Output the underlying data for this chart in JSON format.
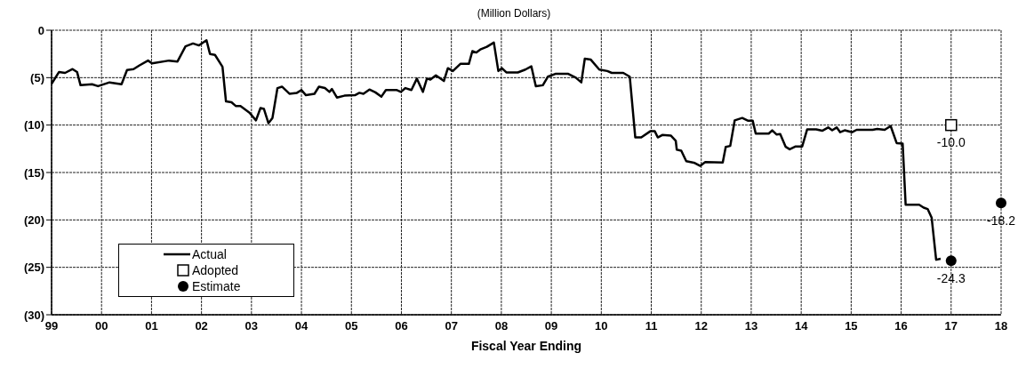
{
  "chart_data": {
    "type": "line",
    "subtitle": "(Million Dollars)",
    "xlabel": "Fiscal Year Ending",
    "xlim": [
      1999,
      2018
    ],
    "xticks": [
      {
        "value": 1999,
        "label": "99"
      },
      {
        "value": 2000,
        "label": "00"
      },
      {
        "value": 2001,
        "label": "01"
      },
      {
        "value": 2002,
        "label": "02"
      },
      {
        "value": 2003,
        "label": "03"
      },
      {
        "value": 2004,
        "label": "04"
      },
      {
        "value": 2005,
        "label": "05"
      },
      {
        "value": 2006,
        "label": "06"
      },
      {
        "value": 2007,
        "label": "07"
      },
      {
        "value": 2008,
        "label": "08"
      },
      {
        "value": 2009,
        "label": "09"
      },
      {
        "value": 2010,
        "label": "10"
      },
      {
        "value": 2011,
        "label": "11"
      },
      {
        "value": 2012,
        "label": "12"
      },
      {
        "value": 2013,
        "label": "13"
      },
      {
        "value": 2014,
        "label": "14"
      },
      {
        "value": 2015,
        "label": "15"
      },
      {
        "value": 2016,
        "label": "16"
      },
      {
        "value": 2017,
        "label": "17"
      },
      {
        "value": 2018,
        "label": "18"
      }
    ],
    "ylim": [
      -30,
      0
    ],
    "yticks": [
      {
        "value": -30,
        "label": "(30)"
      },
      {
        "value": -25,
        "label": "(25)"
      },
      {
        "value": -20,
        "label": "(20)"
      },
      {
        "value": -15,
        "label": "(15)"
      },
      {
        "value": -10,
        "label": "(10)"
      },
      {
        "value": -5,
        "label": "(5)"
      },
      0
    ],
    "grid": true,
    "legend": "bottom left",
    "series": [
      {
        "name": "Actual",
        "marker": "none",
        "color": "#000000",
        "x": [
          1999.0,
          1999.15,
          1999.27,
          1999.42,
          1999.51,
          1999.58,
          1999.81,
          1999.93,
          2000.16,
          2000.4,
          2000.51,
          2000.64,
          2000.76,
          2000.93,
          2001.01,
          2001.35,
          2001.52,
          2001.68,
          2001.83,
          2001.95,
          2002.1,
          2002.17,
          2002.27,
          2002.42,
          2002.49,
          2002.6,
          2002.69,
          2002.78,
          2002.96,
          2003.09,
          2003.18,
          2003.25,
          2003.34,
          2003.42,
          2003.52,
          2003.61,
          2003.76,
          2003.91,
          2004.0,
          2004.09,
          2004.26,
          2004.35,
          2004.47,
          2004.56,
          2004.61,
          2004.71,
          2004.86,
          2005.07,
          2005.16,
          2005.24,
          2005.36,
          2005.48,
          2005.6,
          2005.69,
          2005.9,
          2005.99,
          2006.08,
          2006.2,
          2006.31,
          2006.43,
          2006.51,
          2006.58,
          2006.69,
          2006.85,
          2006.93,
          2007.03,
          2007.18,
          2007.35,
          2007.42,
          2007.5,
          2007.59,
          2007.71,
          2007.85,
          2007.94,
          2008.01,
          2008.1,
          2008.33,
          2008.48,
          2008.6,
          2008.69,
          2008.83,
          2008.93,
          2009.08,
          2009.34,
          2009.49,
          2009.6,
          2009.67,
          2009.79,
          2009.96,
          2010.12,
          2010.21,
          2010.44,
          2010.57,
          2010.68,
          2010.8,
          2010.98,
          2011.07,
          2011.13,
          2011.22,
          2011.39,
          2011.49,
          2011.51,
          2011.6,
          2011.7,
          2011.87,
          2011.98,
          2012.08,
          2012.43,
          2012.49,
          2012.58,
          2012.67,
          2012.82,
          2012.94,
          2013.03,
          2013.09,
          2013.35,
          2013.42,
          2013.51,
          2013.58,
          2013.69,
          2013.77,
          2013.89,
          2014.02,
          2014.12,
          2014.3,
          2014.42,
          2014.54,
          2014.62,
          2014.71,
          2014.78,
          2014.87,
          2015.02,
          2015.11,
          2015.43,
          2015.52,
          2015.67,
          2015.79,
          2015.91,
          2016.03,
          2016.09,
          2016.36,
          2016.45,
          2016.53,
          2016.61,
          2016.7,
          2016.79
        ],
        "values": [
          -5.65,
          -4.4,
          -4.5,
          -4.1,
          -4.4,
          -5.8,
          -5.7,
          -5.9,
          -5.5,
          -5.7,
          -4.2,
          -4.1,
          -3.7,
          -3.2,
          -3.5,
          -3.2,
          -3.3,
          -1.7,
          -1.4,
          -1.6,
          -1.05,
          -2.5,
          -2.6,
          -3.85,
          -7.5,
          -7.6,
          -8.0,
          -8.0,
          -8.7,
          -9.5,
          -8.2,
          -8.3,
          -9.8,
          -9.25,
          -6.1,
          -5.95,
          -6.7,
          -6.6,
          -6.3,
          -6.85,
          -6.7,
          -5.95,
          -6.1,
          -6.5,
          -6.2,
          -7.1,
          -6.9,
          -6.85,
          -6.6,
          -6.7,
          -6.25,
          -6.55,
          -7.0,
          -6.3,
          -6.3,
          -6.5,
          -6.1,
          -6.3,
          -5.1,
          -6.5,
          -5.1,
          -5.2,
          -4.75,
          -5.35,
          -4.0,
          -4.3,
          -3.55,
          -3.55,
          -2.2,
          -2.35,
          -2.0,
          -1.75,
          -1.3,
          -4.3,
          -4.0,
          -4.45,
          -4.45,
          -4.15,
          -3.8,
          -5.9,
          -5.8,
          -4.9,
          -4.6,
          -4.6,
          -5.0,
          -5.5,
          -3.0,
          -3.1,
          -4.15,
          -4.3,
          -4.5,
          -4.5,
          -4.9,
          -11.3,
          -11.3,
          -10.65,
          -10.65,
          -11.3,
          -11.05,
          -11.1,
          -11.65,
          -12.6,
          -12.7,
          -13.8,
          -14.0,
          -14.3,
          -13.9,
          -13.95,
          -12.3,
          -12.2,
          -9.5,
          -9.25,
          -9.55,
          -9.55,
          -10.9,
          -10.9,
          -10.55,
          -11.0,
          -10.95,
          -12.3,
          -12.55,
          -12.25,
          -12.25,
          -10.45,
          -10.45,
          -10.6,
          -10.25,
          -10.55,
          -10.25,
          -10.75,
          -10.55,
          -10.75,
          -10.5,
          -10.5,
          -10.4,
          -10.5,
          -10.1,
          -11.9,
          -11.95,
          -18.4,
          -18.4,
          -18.7,
          -18.85,
          -19.75,
          -24.2,
          -24.1
        ]
      },
      {
        "name": "Adopted",
        "type": "scatter",
        "marker": "square",
        "color": "#000000",
        "x": [
          2017
        ],
        "values": [
          -10.0
        ],
        "value_labels": [
          "-10.0"
        ]
      },
      {
        "name": "Estimate",
        "type": "scatter",
        "marker": "circle",
        "color": "#000000",
        "x": [
          2017,
          2018
        ],
        "values": [
          -24.3,
          -18.2
        ],
        "value_labels": [
          "-24.3",
          "-18.2"
        ]
      }
    ]
  }
}
